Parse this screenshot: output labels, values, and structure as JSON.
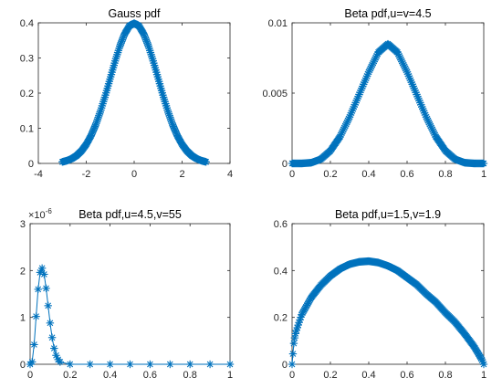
{
  "chart_data": [
    {
      "type": "scatter",
      "title": "Gauss pdf",
      "xlabel": "",
      "ylabel": "",
      "xlim": [
        -4,
        4
      ],
      "ylim": [
        0,
        0.4
      ],
      "xticks": [
        "-4",
        "-2",
        "0",
        "2",
        "4"
      ],
      "yticks": [
        "0",
        "0.1",
        "0.2",
        "0.3",
        "0.4"
      ],
      "marker": "asterisk",
      "color": "#0072BD",
      "series": [
        {
          "x": [
            -3.0,
            -2.8,
            -2.6,
            -2.4,
            -2.2,
            -2.0,
            -1.8,
            -1.6,
            -1.4,
            -1.2,
            -1.0,
            -0.8,
            -0.6,
            -0.4,
            -0.2,
            0.0,
            0.2,
            0.4,
            0.6,
            0.8,
            1.0,
            1.2,
            1.4,
            1.6,
            1.8,
            2.0,
            2.2,
            2.4,
            2.6,
            2.8,
            3.0
          ],
          "y": [
            0.0044,
            0.0079,
            0.0136,
            0.0224,
            0.0355,
            0.054,
            0.079,
            0.1109,
            0.1497,
            0.1942,
            0.242,
            0.2897,
            0.3332,
            0.3683,
            0.391,
            0.3989,
            0.391,
            0.3683,
            0.3332,
            0.2897,
            0.242,
            0.1942,
            0.1497,
            0.1109,
            0.079,
            0.054,
            0.0355,
            0.0224,
            0.0136,
            0.0079,
            0.0044
          ],
          "density": "dense"
        }
      ]
    },
    {
      "type": "scatter",
      "title": "Beta pdf,u=v=4.5",
      "xlabel": "",
      "ylabel": "",
      "xlim": [
        0,
        1
      ],
      "ylim": [
        0,
        0.01
      ],
      "xticks": [
        "0",
        "0.2",
        "0.4",
        "0.6",
        "0.8",
        "1"
      ],
      "yticks": [
        "0",
        "0.005",
        "0.01"
      ],
      "marker": "asterisk",
      "color": "#0072BD",
      "series": [
        {
          "x": [
            0.0,
            0.05,
            0.1,
            0.15,
            0.2,
            0.25,
            0.3,
            0.35,
            0.4,
            0.45,
            0.5,
            0.55,
            0.6,
            0.65,
            0.7,
            0.75,
            0.8,
            0.85,
            0.9,
            0.95,
            1.0
          ],
          "y": [
            0.0,
            0.0,
            5e-05,
            0.0003,
            0.0009,
            0.0019,
            0.0033,
            0.0049,
            0.0065,
            0.0079,
            0.0085,
            0.0079,
            0.0065,
            0.0049,
            0.0033,
            0.0019,
            0.0009,
            0.0003,
            5e-05,
            0.0,
            0.0
          ],
          "density": "dense"
        }
      ]
    },
    {
      "type": "scatter",
      "title": "Beta pdf,u=4.5,v=55",
      "xlabel": "",
      "ylabel": "",
      "xlim": [
        0,
        1
      ],
      "ylim": [
        0,
        3
      ],
      "y_exponent": "-6",
      "y_multiplier_base": "×10",
      "xticks": [
        "0",
        "0.2",
        "0.4",
        "0.6",
        "0.8",
        "1"
      ],
      "yticks": [
        "0",
        "1",
        "2",
        "3"
      ],
      "marker": "asterisk",
      "color": "#0072BD",
      "series": [
        {
          "x": [
            0.0,
            0.01,
            0.02,
            0.03,
            0.04,
            0.05,
            0.06,
            0.07,
            0.08,
            0.09,
            0.1,
            0.11,
            0.12,
            0.13,
            0.14,
            0.15,
            0.2,
            0.3,
            0.4,
            0.5,
            0.6,
            0.7,
            0.8,
            0.9,
            1.0
          ],
          "y": [
            0.0,
            0.05,
            0.42,
            1.02,
            1.6,
            1.96,
            2.05,
            1.92,
            1.62,
            1.25,
            0.88,
            0.57,
            0.34,
            0.19,
            0.1,
            0.05,
            0.0,
            0.0,
            0.0,
            0.0,
            0.0,
            0.0,
            0.0,
            0.0,
            0.0
          ],
          "density": "sparse"
        }
      ]
    },
    {
      "type": "scatter",
      "title": "Beta pdf,u=1.5,v=1.9",
      "xlabel": "",
      "ylabel": "",
      "xlim": [
        0,
        1
      ],
      "ylim": [
        0,
        0.6
      ],
      "xticks": [
        "0",
        "0.2",
        "0.4",
        "0.6",
        "0.8",
        "1"
      ],
      "yticks": [
        "0",
        "0.2",
        "0.4",
        "0.6"
      ],
      "marker": "asterisk",
      "color": "#0072BD",
      "series": [
        {
          "x": [
            0.0,
            0.01,
            0.02,
            0.05,
            0.1,
            0.15,
            0.2,
            0.25,
            0.3,
            0.35,
            0.4,
            0.45,
            0.5,
            0.55,
            0.6,
            0.65,
            0.7,
            0.75,
            0.8,
            0.85,
            0.9,
            0.95,
            0.99,
            1.0
          ],
          "y": [
            0.0,
            0.098,
            0.138,
            0.212,
            0.285,
            0.337,
            0.377,
            0.407,
            0.427,
            0.437,
            0.44,
            0.434,
            0.42,
            0.4,
            0.37,
            0.34,
            0.3,
            0.265,
            0.22,
            0.18,
            0.13,
            0.075,
            0.02,
            0.0
          ],
          "density": "dense"
        }
      ]
    }
  ]
}
